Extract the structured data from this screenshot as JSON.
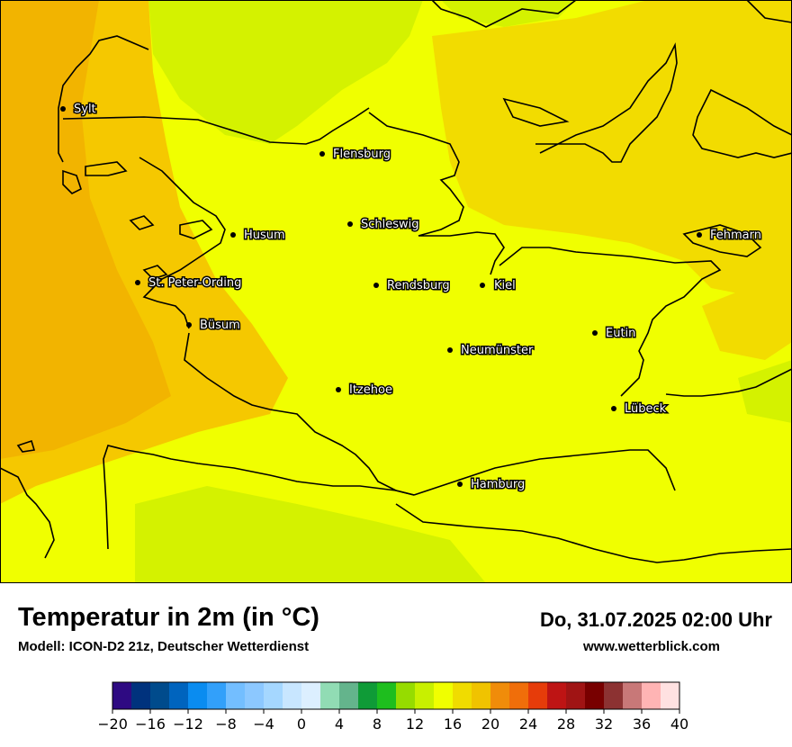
{
  "map": {
    "cities": [
      {
        "name": "Sylt"
      },
      {
        "name": "Flensburg"
      },
      {
        "name": "Schleswig"
      },
      {
        "name": "Husum"
      },
      {
        "name": "Fehmarn"
      },
      {
        "name": "St. Peter-Ording"
      },
      {
        "name": "Rendsburg"
      },
      {
        "name": "Kiel"
      },
      {
        "name": "Büsum"
      },
      {
        "name": "Eutin"
      },
      {
        "name": "Neumünster"
      },
      {
        "name": "Itzehoe"
      },
      {
        "name": "Lübeck"
      },
      {
        "name": "Hamburg"
      }
    ]
  },
  "footer": {
    "title": "Temperatur in 2m (in °C)",
    "subtitle": "Modell: ICON-D2 21z, Deutscher Wetterdienst",
    "datetime": "Do, 31.07.2025 02:00 Uhr",
    "website": "www.wetterblick.com"
  },
  "legend": {
    "colors": [
      "#2e0a82",
      "#00327d",
      "#004b8c",
      "#0064be",
      "#0a8cf0",
      "#32a0fa",
      "#73beff",
      "#8cc8ff",
      "#a5d7ff",
      "#c8e6ff",
      "#dcefff",
      "#91dcb4",
      "#64b48c",
      "#0f9b37",
      "#1ebe1e",
      "#96dc00",
      "#c8f000",
      "#f0ff00",
      "#f0dc00",
      "#f0c300",
      "#f08c0a",
      "#f06e0a",
      "#e63c0a",
      "#be1414",
      "#a01414",
      "#780000",
      "#8c3232",
      "#c87878",
      "#ffb4b4",
      "#ffe1e1"
    ],
    "tick_labels": [
      "−20",
      "−16",
      "−12",
      "−8",
      "−4",
      "0",
      "4",
      "8",
      "12",
      "16",
      "20",
      "24",
      "28",
      "32",
      "36",
      "40"
    ]
  }
}
